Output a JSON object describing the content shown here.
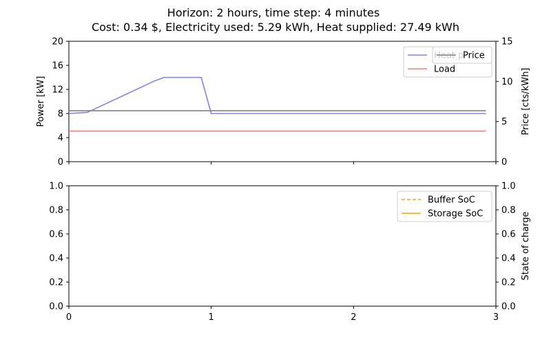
{
  "chart_data": [
    {
      "type": "line",
      "title": [
        "Horizon: 2 hours, time step: 4 minutes",
        "Cost: 0.34 $, Electricity used: 5.29 kWh, Heat supplied: 27.49 kWh"
      ],
      "xlim": [
        0,
        3
      ],
      "x_ticks": [
        "0",
        "1",
        "2",
        "3"
      ],
      "ylabel": "Power [kW]",
      "ylim": [
        0,
        20
      ],
      "y_ticks": [
        "0",
        "4",
        "8",
        "12",
        "16",
        "20"
      ],
      "ylabel_right": "Price [cts/kWh]",
      "ylim_right": [
        0,
        15
      ],
      "y_ticks_right": [
        "0",
        "5",
        "10",
        "15"
      ],
      "series": [
        {
          "name": "Heat p...",
          "axis": "left",
          "color": "#8080ff",
          "style": "solid",
          "x": [
            0,
            0.13,
            0.6,
            0.67,
            0.93,
            1.0,
            2.93
          ],
          "y": [
            8.0,
            8.2,
            13.4,
            14.0,
            14.0,
            8.0,
            8.0
          ]
        },
        {
          "name": "Load",
          "axis": "left",
          "color": "#ff8080",
          "style": "solid",
          "x": [
            0,
            2.93
          ],
          "y": [
            5.1,
            5.1
          ]
        },
        {
          "name": "Price",
          "axis": "right",
          "color": "#808080",
          "style": "solid",
          "x": [
            0,
            2.93
          ],
          "y": [
            6.35,
            6.35
          ]
        }
      ],
      "legend_left": {
        "location": "upper-right",
        "entries": [
          {
            "label": "Heat p",
            "color": "#8080ff",
            "style": "solid"
          },
          {
            "label": "Load",
            "color": "#ff8080",
            "style": "solid"
          }
        ]
      },
      "legend_right": {
        "location": "upper-right",
        "entries": [
          {
            "label": "Price",
            "color": "#808080",
            "style": "solid"
          }
        ]
      }
    },
    {
      "type": "line",
      "xlim": [
        0,
        3
      ],
      "x_ticks": [
        "0",
        "1",
        "2",
        "3"
      ],
      "ylim": [
        0,
        1
      ],
      "y_ticks": [
        "0.0",
        "0.2",
        "0.4",
        "0.6",
        "0.8",
        "1.0"
      ],
      "ylabel_right": "State of charge",
      "y_ticks_right": [
        "0.0",
        "0.2",
        "0.4",
        "0.6",
        "0.8",
        "1.0"
      ],
      "series": [],
      "legend": {
        "location": "upper-right",
        "entries": [
          {
            "label": "Buffer SoC",
            "color": "#ffa500",
            "style": "dashed"
          },
          {
            "label": "Storage SoC",
            "color": "#ffa500",
            "style": "solid"
          }
        ]
      }
    }
  ]
}
